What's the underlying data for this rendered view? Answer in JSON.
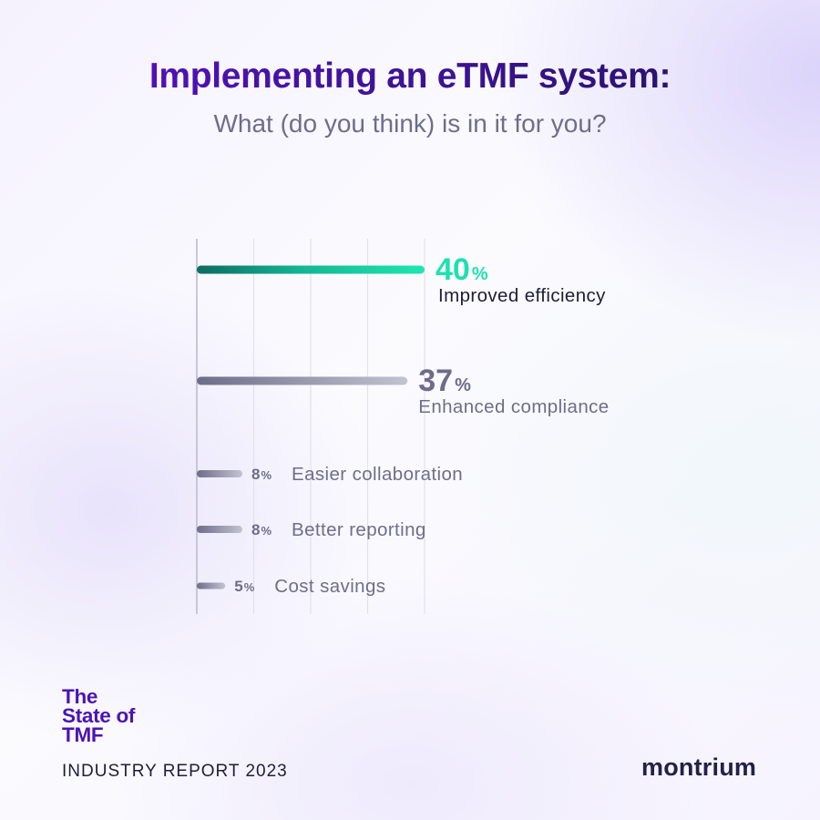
{
  "title": "Implementing an eTMF system:",
  "subtitle": "What (do you think) is in it for you?",
  "brand": {
    "line1": "The",
    "line2": "State of",
    "line3": "TMF",
    "report": "INDUSTRY REPORT 2023"
  },
  "logo": "montrium",
  "colors": {
    "accent_teal": "#1fe0b0",
    "accent_teal_dark": "#0d6b62",
    "bar_gray": "#9b9ab0",
    "bar_gray_dark": "#6e6c88",
    "title_purple": "#4b14b4",
    "text_dark": "#1f1d38",
    "text_muted": "#6f6d8a"
  },
  "chart_data": {
    "type": "bar",
    "orientation": "horizontal",
    "title": "Implementing an eTMF system:",
    "subtitle": "What (do you think) is in it for you?",
    "categories": [
      "Improved efficiency",
      "Enhanced compliance",
      "Easier collaboration",
      "Better reporting",
      "Cost savings"
    ],
    "values": [
      40,
      37,
      8,
      8,
      5
    ],
    "unit": "%",
    "highlight": "Improved efficiency",
    "xlim": [
      0,
      40
    ],
    "grid": true,
    "legend": "none"
  }
}
